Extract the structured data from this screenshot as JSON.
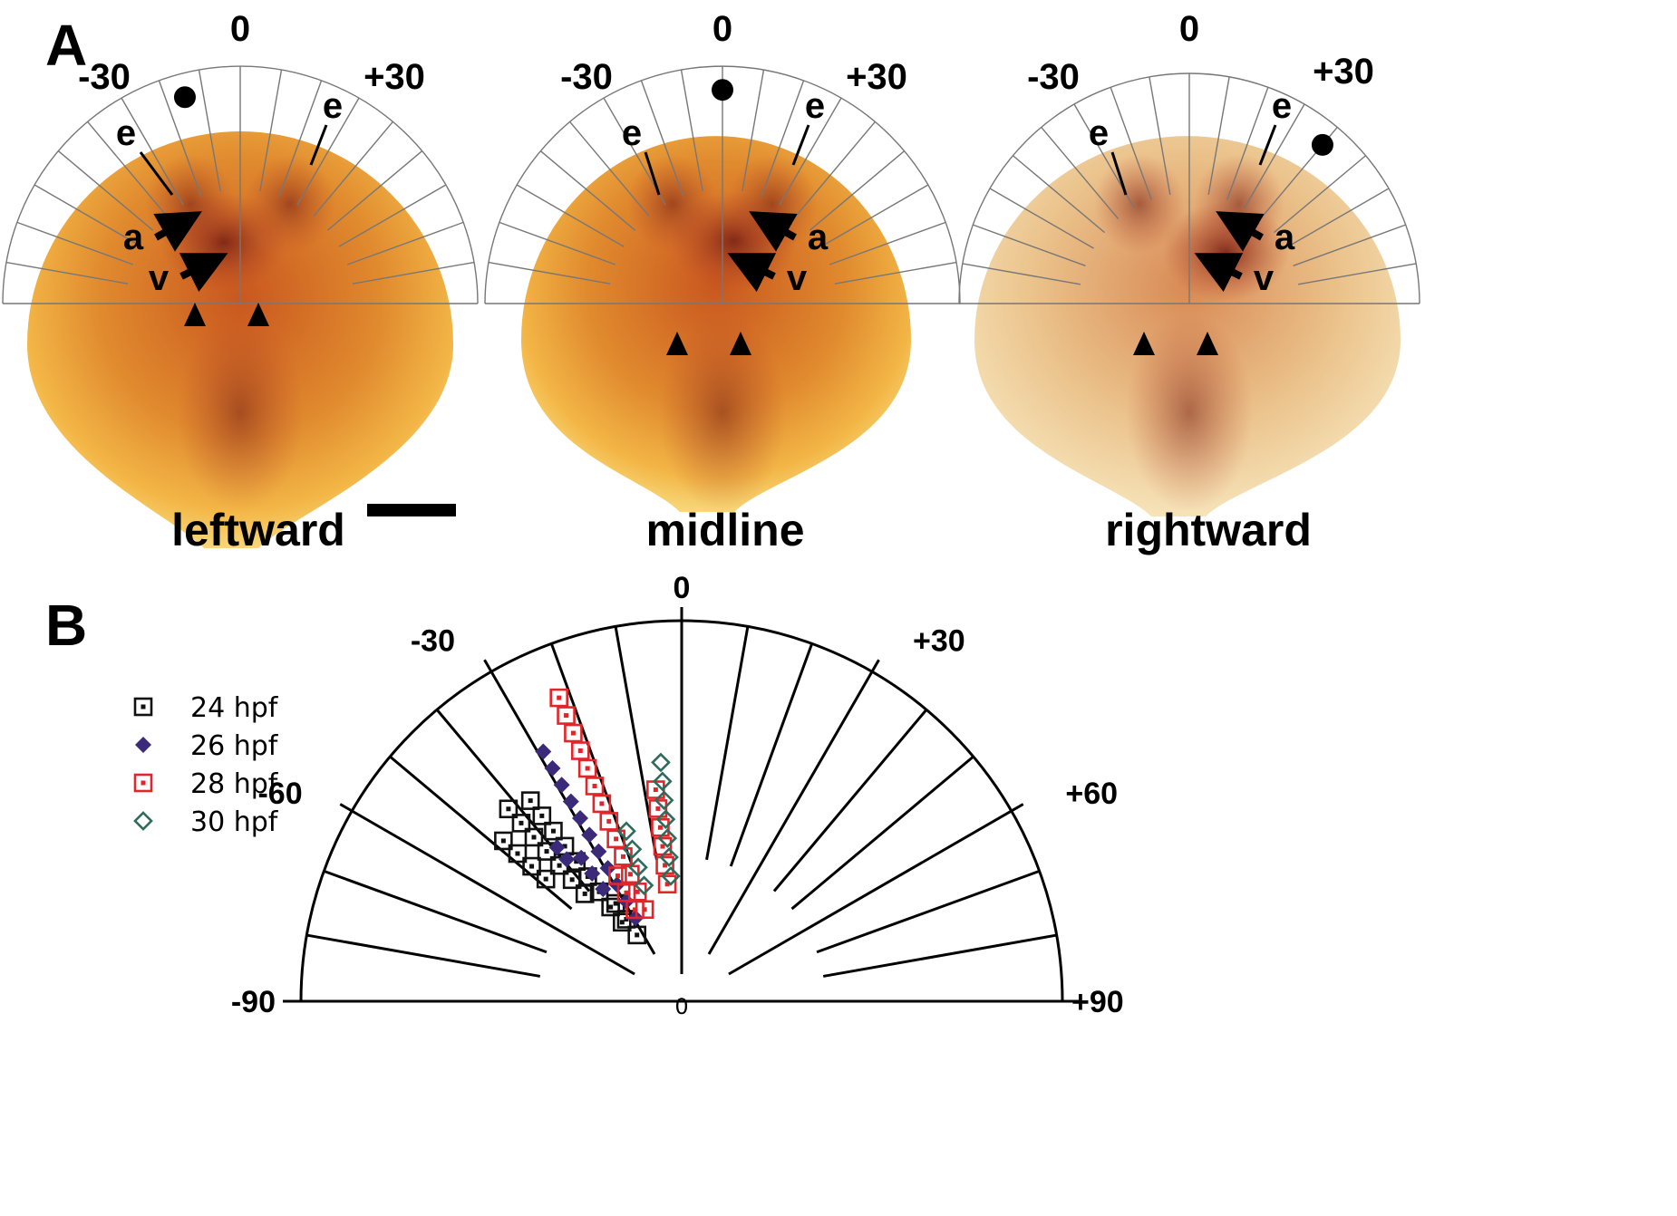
{
  "panel_a": {
    "label": "A",
    "scale": {
      "zero": "0",
      "minus": "-30",
      "plus": "+30"
    },
    "labels": {
      "e": "e",
      "a": "a",
      "v": "v"
    },
    "panels": [
      {
        "id": "leftward",
        "caption": "leftward",
        "dot_angle": -15,
        "heart_angle": -15
      },
      {
        "id": "midline",
        "caption": "midline",
        "dot_angle": 0,
        "heart_angle": 10
      },
      {
        "id": "rightward",
        "caption": "rightward",
        "dot_angle": 40,
        "heart_angle": 35
      }
    ],
    "colors": {
      "embryo_outer": "#f2a93a",
      "embryo_mid": "#d9782a",
      "tissue": "#a8341c",
      "dark_tissue": "#6e1f14"
    }
  },
  "panel_b": {
    "label": "B",
    "chart_data": {
      "type": "scatter",
      "coordinate_system": "polar-semicircle",
      "angle_range": [
        -90,
        90
      ],
      "angle_ticks": [
        "-90",
        "-60",
        "-30",
        "0",
        "+30",
        "+60",
        "+90"
      ],
      "center_label": "0",
      "legend_placement": "left",
      "series": [
        {
          "name": "24 hpf",
          "marker": "open-square",
          "color": "#111111",
          "points": [
            {
              "angle": -37,
              "r": [
                0.26,
                0.31,
                0.36,
                0.41,
                0.46,
                0.51,
                0.56,
                0.61,
                0.66
              ]
            },
            {
              "angle": -42,
              "r": [
                0.38,
                0.43,
                0.48,
                0.53,
                0.58,
                0.63,
                0.68
              ]
            },
            {
              "angle": -48,
              "r": [
                0.48,
                0.53,
                0.58,
                0.63
              ]
            },
            {
              "angle": -34,
              "r": [
                0.21,
                0.26,
                0.31
              ]
            }
          ]
        },
        {
          "name": "26 hpf",
          "marker": "filled-diamond",
          "color": "#3b2a7a",
          "points": [
            {
              "angle": -29,
              "r": [
                0.25,
                0.3,
                0.35,
                0.4,
                0.45,
                0.5,
                0.55,
                0.6,
                0.65,
                0.7,
                0.75
              ]
            },
            {
              "angle": -35,
              "r": [
                0.36,
                0.41,
                0.46
              ]
            },
            {
              "angle": -39,
              "r": [
                0.48,
                0.52
              ]
            }
          ]
        },
        {
          "name": "28 hpf",
          "marker": "open-square",
          "color": "#e0262a",
          "points": [
            {
              "angle": -22,
              "r": [
                0.26,
                0.31,
                0.36,
                0.41,
                0.46,
                0.51,
                0.56,
                0.61,
                0.66,
                0.71,
                0.76,
                0.81,
                0.86
              ]
            },
            {
              "angle": -27,
              "r": [
                0.27,
                0.32,
                0.37
              ]
            },
            {
              "angle": -7,
              "r": [
                0.31,
                0.36,
                0.41,
                0.46,
                0.51,
                0.56
              ]
            }
          ]
        },
        {
          "name": "30 hpf",
          "marker": "open-diamond",
          "color": "#2f6b5a",
          "points": [
            {
              "angle": -18,
              "r": [
                0.32,
                0.37,
                0.42,
                0.47
              ]
            },
            {
              "angle": -5,
              "r": [
                0.33,
                0.38,
                0.43,
                0.48,
                0.53,
                0.58,
                0.63
              ]
            }
          ]
        }
      ]
    }
  }
}
